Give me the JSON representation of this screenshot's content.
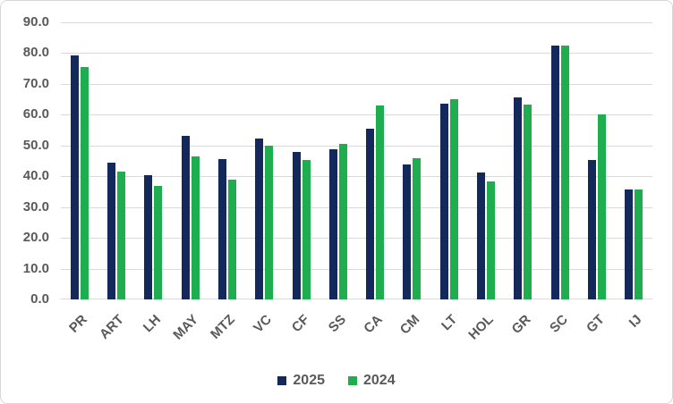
{
  "chart_data": {
    "type": "bar",
    "title": "",
    "categories": [
      "PR",
      "ART",
      "LH",
      "MAY",
      "MTZ",
      "VC",
      "CF",
      "SS",
      "CA",
      "CM",
      "LT",
      "HOL",
      "GR",
      "SC",
      "GT",
      "IJ"
    ],
    "series": [
      {
        "name": "2025",
        "color": "#14295b",
        "values": [
          79.3,
          44.3,
          40.5,
          53.0,
          45.6,
          52.4,
          47.9,
          48.7,
          55.5,
          43.8,
          63.6,
          41.2,
          65.7,
          82.5,
          45.2,
          35.7
        ]
      },
      {
        "name": "2024",
        "color": "#1fae4f",
        "values": [
          75.6,
          41.4,
          37.0,
          46.5,
          39.0,
          49.9,
          45.4,
          50.4,
          63.0,
          45.8,
          65.1,
          38.2,
          63.2,
          82.5,
          60.0,
          35.8
        ]
      }
    ],
    "xlabel": "",
    "ylabel": "",
    "ylim": [
      0,
      90
    ],
    "y_tick_step": 10,
    "y_tick_labels": [
      "0.0",
      "10.0",
      "20.0",
      "30.0",
      "40.0",
      "50.0",
      "60.0",
      "70.0",
      "80.0",
      "90.0"
    ],
    "grid": true,
    "legend_position": "bottom-center",
    "colors": {
      "gridline": "#d9d9d9",
      "axis_text": "#595959",
      "background": "#ffffff",
      "series_2025": "#14295b",
      "series_2024": "#1fae4f"
    }
  }
}
